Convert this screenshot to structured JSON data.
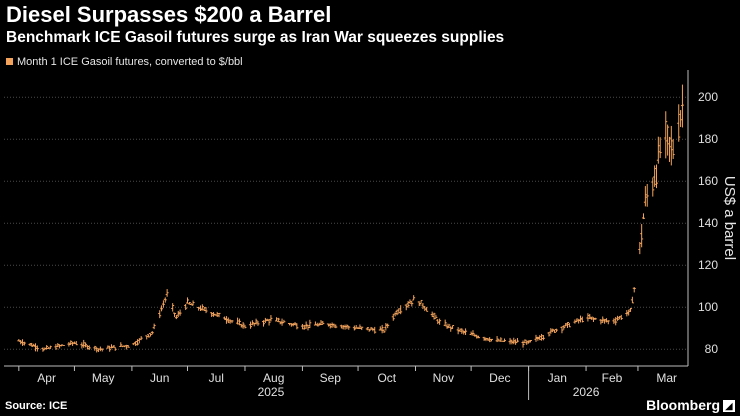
{
  "header": {
    "title": "Diesel Surpasses $200 a Barrel",
    "subtitle": "Benchmark ICE Gasoil futures surge as Iran War squeezes supplies"
  },
  "footer": {
    "source": "Source: ICE",
    "brand": "Bloomberg"
  },
  "colors": {
    "background": "#000000",
    "series": "#f3a35c",
    "grid": "#4a4a4a"
  },
  "chart_data": {
    "type": "line",
    "chart_style": "ohlc",
    "series": [
      {
        "name": "Month 1 ICE Gasoil futures, converted to $/bbl",
        "x": [
          "2025-04-01",
          "2025-04-15",
          "2025-05-01",
          "2025-05-15",
          "2025-06-01",
          "2025-06-12",
          "2025-06-20",
          "2025-06-25",
          "2025-07-01",
          "2025-07-15",
          "2025-08-01",
          "2025-08-15",
          "2025-09-01",
          "2025-09-15",
          "2025-10-01",
          "2025-10-15",
          "2025-10-22",
          "2025-11-01",
          "2025-11-05",
          "2025-11-15",
          "2025-12-01",
          "2025-12-15",
          "2026-01-01",
          "2026-01-15",
          "2026-02-01",
          "2026-02-15",
          "2026-02-25",
          "2026-03-01",
          "2026-03-05",
          "2026-03-10",
          "2026-03-15",
          "2026-03-20",
          "2026-03-25"
        ],
        "values": [
          84,
          80,
          83,
          80,
          82,
          88,
          106,
          95,
          102,
          97,
          91,
          94,
          91,
          92,
          90,
          89,
          98,
          104,
          101,
          92,
          87,
          84,
          83,
          89,
          95,
          93,
          98,
          120,
          150,
          162,
          182,
          175,
          196
        ]
      }
    ],
    "x_ticks": [
      "Apr",
      "May",
      "Jun",
      "Jul",
      "Aug",
      "Sep",
      "Oct",
      "Nov",
      "Dec",
      "Jan",
      "Feb",
      "Mar"
    ],
    "year_labels": [
      "2025",
      "2026"
    ],
    "ylabel": "US$ a barrel",
    "y_ticks": [
      80,
      100,
      120,
      140,
      160,
      180,
      200
    ],
    "ylim": [
      72,
      212
    ],
    "xlim": [
      "2025-03-24",
      "2026-03-28"
    ],
    "grid": true,
    "y_axis_position": "right",
    "legend_position": "top-left"
  }
}
